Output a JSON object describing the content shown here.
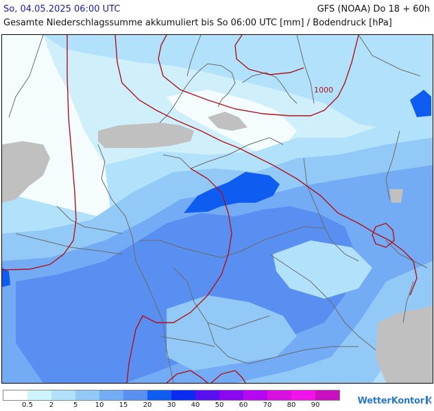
{
  "header": {
    "date": "So, 04.05.2025 06:00 UTC",
    "model": "GFS (NOAA) Do 18 + 60h",
    "title": "Gesamte Niederschlagssumme akkumuliert bis So 06:00 UTC [mm] / Bodendruck [hPa]"
  },
  "map": {
    "isobar_label": "1000",
    "isobar_color": "#b01018",
    "land_fill": "#cfeffb",
    "masked_fill": "#c0c0c0",
    "border_color": "#6a6a6a"
  },
  "legend": {
    "thresholds": [
      "0.5",
      "2",
      "5",
      "10",
      "15",
      "20",
      "30",
      "40",
      "50",
      "60",
      "70",
      "80",
      "90"
    ],
    "colors": [
      "#ffffff",
      "#cff5fc",
      "#b2e2fb",
      "#92c9f7",
      "#73abf5",
      "#5a8ff2",
      "#0f5cf0",
      "#0a2cf0",
      "#5810f0",
      "#8a08f0",
      "#b408f0",
      "#d810e0",
      "#f014e8",
      "#c810c0"
    ]
  },
  "branding": {
    "logo_text": "WetterKontor"
  }
}
